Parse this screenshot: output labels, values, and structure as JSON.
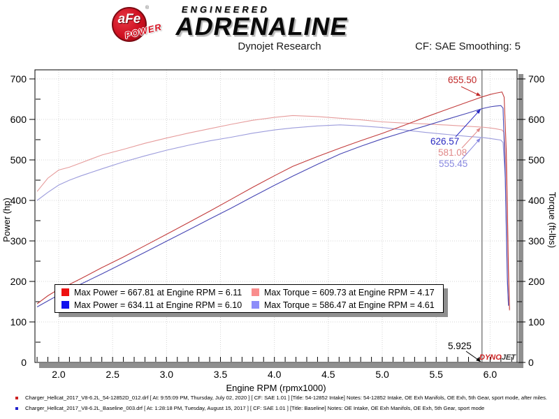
{
  "header": {
    "logo": {
      "afe": "aFe",
      "reg": "®",
      "power": "POWER",
      "engineered": "ENGINEERED",
      "adrenaline": "ADRENALINE"
    },
    "subtitle": "Dynojet Research",
    "cf_label": "CF: SAE Smoothing: 5"
  },
  "chart_data": {
    "type": "line",
    "title": "Dynojet Research",
    "xlabel": "Engine RPM (rpmx1000)",
    "ylabel_left": "Power (hp)",
    "ylabel_right": "Torque (ft-lbs)",
    "xlim": [
      1.78,
      6.25
    ],
    "ylim": [
      0,
      700
    ],
    "x_major_step": 0.5,
    "x_minor_step": 0.1,
    "y_major_step": 100,
    "y_minor_step": 50,
    "grid": "dotted-major",
    "cursor_rpm": 5.925,
    "colors": {
      "intake_power": "#c23b3b",
      "intake_torque": "#e69c9c",
      "baseline_power": "#4646b4",
      "baseline_torque": "#9c9cdc",
      "cursor": "#444444",
      "grid": "#d4d4d4",
      "shadow": "#8f8f8f",
      "border": "#000000"
    },
    "series": [
      {
        "name": "baseline_torque",
        "color": "#9c9cdc",
        "points": [
          [
            1.8,
            400
          ],
          [
            1.9,
            420
          ],
          [
            2.0,
            438
          ],
          [
            2.1,
            450
          ],
          [
            2.2,
            460
          ],
          [
            2.4,
            478
          ],
          [
            2.6,
            495
          ],
          [
            2.8,
            510
          ],
          [
            3.0,
            524
          ],
          [
            3.2,
            536
          ],
          [
            3.4,
            547
          ],
          [
            3.6,
            556
          ],
          [
            3.8,
            566
          ],
          [
            4.0,
            574
          ],
          [
            4.17,
            579
          ],
          [
            4.4,
            584
          ],
          [
            4.61,
            586.5
          ],
          [
            4.8,
            584
          ],
          [
            5.0,
            580
          ],
          [
            5.2,
            574
          ],
          [
            5.4,
            568
          ],
          [
            5.6,
            563
          ],
          [
            5.8,
            558
          ],
          [
            5.925,
            555.5
          ],
          [
            6.0,
            553
          ],
          [
            6.05,
            551
          ],
          [
            6.1,
            549
          ],
          [
            6.12,
            543
          ],
          [
            6.14,
            455
          ],
          [
            6.16,
            195
          ],
          [
            6.17,
            142
          ]
        ]
      },
      {
        "name": "intake_torque",
        "color": "#e69c9c",
        "points": [
          [
            1.8,
            422
          ],
          [
            1.9,
            455
          ],
          [
            2.0,
            475
          ],
          [
            2.1,
            482
          ],
          [
            2.2,
            492
          ],
          [
            2.4,
            512
          ],
          [
            2.6,
            526
          ],
          [
            2.8,
            541
          ],
          [
            3.0,
            554
          ],
          [
            3.2,
            566
          ],
          [
            3.4,
            577
          ],
          [
            3.6,
            588
          ],
          [
            3.8,
            598
          ],
          [
            4.0,
            605
          ],
          [
            4.17,
            609.7
          ],
          [
            4.4,
            607
          ],
          [
            4.61,
            603
          ],
          [
            4.8,
            599
          ],
          [
            5.0,
            594
          ],
          [
            5.2,
            591
          ],
          [
            5.4,
            589
          ],
          [
            5.6,
            586
          ],
          [
            5.8,
            583
          ],
          [
            5.925,
            581.1
          ],
          [
            6.0,
            579
          ],
          [
            6.05,
            577
          ],
          [
            6.11,
            574
          ],
          [
            6.13,
            568
          ],
          [
            6.15,
            470
          ],
          [
            6.17,
            210
          ],
          [
            6.18,
            128
          ]
        ]
      },
      {
        "name": "baseline_power",
        "color": "#4646b4",
        "points": [
          [
            1.8,
            137.1
          ],
          [
            1.9,
            151.9
          ],
          [
            2.0,
            166.8
          ],
          [
            2.1,
            179.9
          ],
          [
            2.2,
            192.7
          ],
          [
            2.4,
            218.4
          ],
          [
            2.6,
            245.1
          ],
          [
            2.8,
            271.9
          ],
          [
            3.0,
            299.3
          ],
          [
            3.2,
            326.6
          ],
          [
            3.4,
            354.1
          ],
          [
            3.6,
            381.1
          ],
          [
            3.8,
            409.5
          ],
          [
            4.0,
            437.2
          ],
          [
            4.17,
            459.8
          ],
          [
            4.4,
            489.2
          ],
          [
            4.61,
            514.7
          ],
          [
            4.8,
            533.7
          ],
          [
            5.0,
            552.1
          ],
          [
            5.2,
            568.3
          ],
          [
            5.4,
            584.0
          ],
          [
            5.6,
            600.4
          ],
          [
            5.8,
            616.2
          ],
          [
            5.925,
            626.6
          ],
          [
            6.0,
            631.0
          ],
          [
            6.05,
            633.0
          ],
          [
            6.1,
            634.1
          ],
          [
            6.12,
            628
          ],
          [
            6.14,
            470
          ],
          [
            6.16,
            210
          ],
          [
            6.17,
            140
          ]
        ]
      },
      {
        "name": "intake_power",
        "color": "#c23b3b",
        "points": [
          [
            1.8,
            144.6
          ],
          [
            1.9,
            164.6
          ],
          [
            2.0,
            180.9
          ],
          [
            2.1,
            192.8
          ],
          [
            2.2,
            206.1
          ],
          [
            2.4,
            234.0
          ],
          [
            2.6,
            260.3
          ],
          [
            2.8,
            288.3
          ],
          [
            3.0,
            316.4
          ],
          [
            3.2,
            344.9
          ],
          [
            3.4,
            373.5
          ],
          [
            3.6,
            403.0
          ],
          [
            3.8,
            432.5
          ],
          [
            4.0,
            460.8
          ],
          [
            4.17,
            484.1
          ],
          [
            4.4,
            508.5
          ],
          [
            4.61,
            529.3
          ],
          [
            4.8,
            547.4
          ],
          [
            5.0,
            565.5
          ],
          [
            5.2,
            585.1
          ],
          [
            5.4,
            605.5
          ],
          [
            5.6,
            624.8
          ],
          [
            5.8,
            643.8
          ],
          [
            5.925,
            655.5
          ],
          [
            6.0,
            661.5
          ],
          [
            6.05,
            664.6
          ],
          [
            6.11,
            667.8
          ],
          [
            6.13,
            655
          ],
          [
            6.15,
            520
          ],
          [
            6.17,
            230
          ],
          [
            6.18,
            130
          ]
        ]
      }
    ],
    "legend": {
      "rows": [
        [
          {
            "color": "#ee1111",
            "label": "Max Power = 667.81 at Engine RPM = 6.11"
          },
          {
            "color": "#f98d8d",
            "label": "Max Torque = 609.73 at Engine RPM = 4.17"
          }
        ],
        [
          {
            "color": "#1111ee",
            "label": "Max Power = 634.11 at Engine RPM = 6.10"
          },
          {
            "color": "#8d8df9",
            "label": "Max Torque = 586.47 at Engine RPM = 4.61"
          }
        ]
      ]
    },
    "annotations": [
      {
        "text": "655.50",
        "color": "#c22929",
        "series": "intake_power",
        "value": 655.5
      },
      {
        "text": "626.57",
        "color": "#2929c2",
        "series": "baseline_power",
        "value": 626.6
      },
      {
        "text": "581.08",
        "color": "#e08888",
        "series": "intake_torque",
        "value": 581.1
      },
      {
        "text": "555.45",
        "color": "#8888e0",
        "series": "baseline_torque",
        "value": 555.5
      },
      {
        "text": "5.925",
        "color": "#000000",
        "series": "axis",
        "value": 0
      }
    ],
    "watermark": {
      "dyno": "DYNO",
      "jet": "JET",
      "dyno_color": "#cc2222",
      "jet_color": "#3a3a3a"
    }
  },
  "footer": {
    "runs": [
      {
        "color": "#cc2222",
        "text": "Charger_Hellcat_2017_V8-6.2L_54-12852D_012.drf [ At: 9:55:09 PM, Thursday, July 02, 2020 ] [ CF: SAE 1.01 ] [Title: 54-12852 Intake]  Notes: 54-12852 Intake, OE Exh Manifols, OE Exh, 5th Gear, sport mode, after miles."
      },
      {
        "color": "#2222cc",
        "text": "Charger_Hellcat_2017_V8-6.2L_Baseline_003.drf [ At: 1:28:18 PM, Tuesday, August 15, 2017 ] [ CF: SAE 1.01 ] [Title: Baseline]  Notes: OE Intake, OE Exh Manifols, OE Exh, 5th Gear, sport mode"
      }
    ]
  }
}
